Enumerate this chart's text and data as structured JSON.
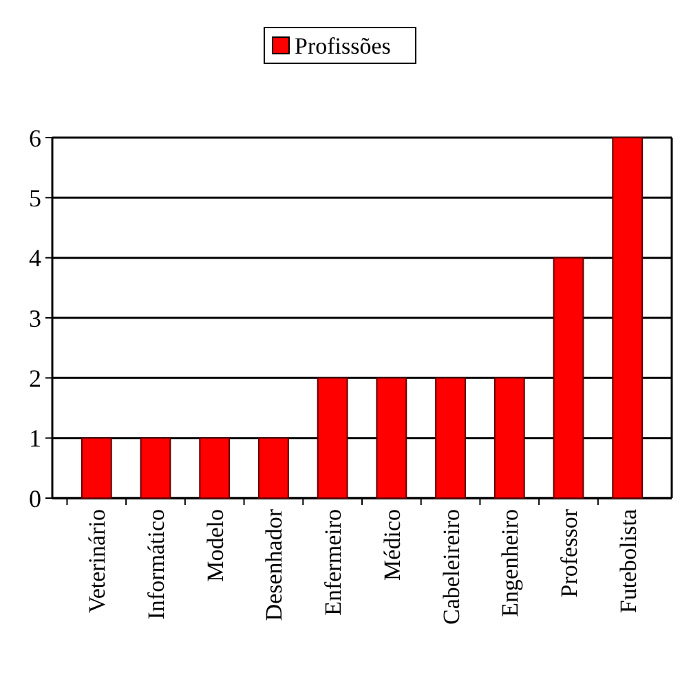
{
  "chart_data": {
    "type": "bar",
    "categories": [
      "Veterinário",
      "Informático",
      "Modelo",
      "Desenhador",
      "Enfermeiro",
      "Médico",
      "Cabeleireiro",
      "Engenheiro",
      "Professor",
      "Futebolista"
    ],
    "series": [
      {
        "name": "Profissões",
        "color": "#ff0000",
        "values": [
          1,
          1,
          1,
          1,
          2,
          2,
          2,
          2,
          4,
          6
        ]
      }
    ],
    "ylim": [
      0,
      6
    ],
    "yticks": [
      0,
      1,
      2,
      3,
      4,
      5,
      6
    ],
    "grid": "y",
    "legend": "top"
  }
}
